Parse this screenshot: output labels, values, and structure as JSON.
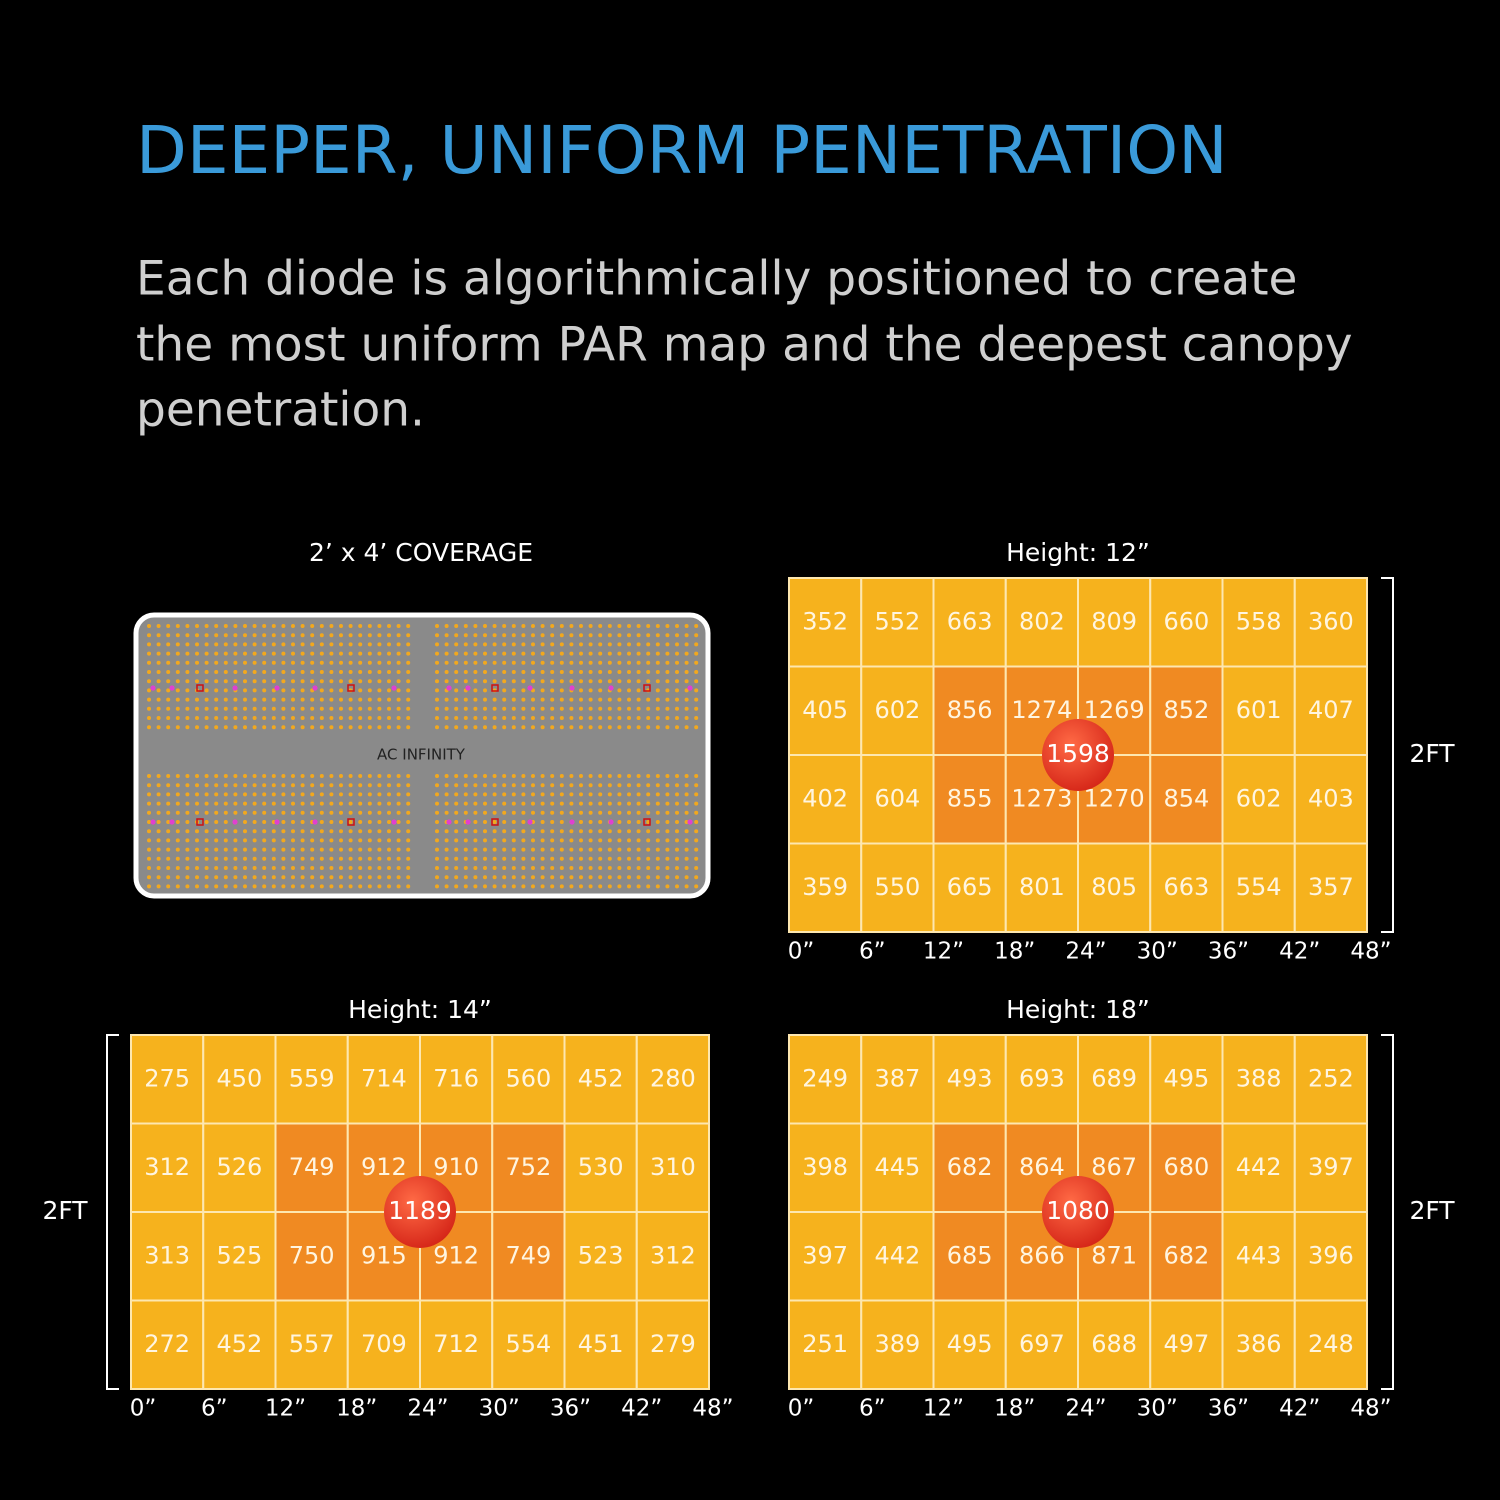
{
  "header": {
    "title": "DEEPER, UNIFORM PENETRATION",
    "subtitle_lines": [
      "Each diode is algorithmically positioned to create",
      "the most uniform PAR map and the deepest canopy",
      "penetration."
    ]
  },
  "coverage": {
    "title": "2’ x 4’ COVERAGE",
    "brand": "AC INFINITY"
  },
  "maps": [
    {
      "title": "Height: 12”",
      "side_label": "2FT",
      "center": 1598,
      "rows": [
        [
          352,
          552,
          663,
          802,
          809,
          660,
          558,
          360
        ],
        [
          405,
          602,
          856,
          1274,
          1269,
          852,
          601,
          407
        ],
        [
          402,
          604,
          855,
          1273,
          1270,
          854,
          602,
          403
        ],
        [
          359,
          550,
          665,
          801,
          805,
          663,
          554,
          357
        ]
      ],
      "x_labels": [
        "0”",
        "6”",
        "12”",
        "18”",
        "24”",
        "30”",
        "36”",
        "42”",
        "48”"
      ]
    },
    {
      "title": "Height: 14”",
      "side_label": "2FT",
      "center": 1189,
      "rows": [
        [
          275,
          450,
          559,
          714,
          716,
          560,
          452,
          280
        ],
        [
          312,
          526,
          749,
          912,
          910,
          752,
          530,
          310
        ],
        [
          313,
          525,
          750,
          915,
          912,
          749,
          523,
          312
        ],
        [
          272,
          452,
          557,
          709,
          712,
          554,
          451,
          279
        ]
      ],
      "x_labels": [
        "0”",
        "6”",
        "12”",
        "18”",
        "24”",
        "30”",
        "36”",
        "42”",
        "48”"
      ]
    },
    {
      "title": "Height: 18”",
      "side_label": "2FT",
      "center": 1080,
      "rows": [
        [
          249,
          387,
          493,
          693,
          689,
          495,
          388,
          252
        ],
        [
          398,
          445,
          682,
          864,
          867,
          680,
          442,
          397
        ],
        [
          397,
          442,
          685,
          866,
          871,
          682,
          443,
          396
        ],
        [
          251,
          389,
          495,
          697,
          688,
          497,
          386,
          248
        ]
      ],
      "x_labels": [
        "0”",
        "6”",
        "12”",
        "18”",
        "24”",
        "30”",
        "36”",
        "42”",
        "48”"
      ]
    }
  ]
}
